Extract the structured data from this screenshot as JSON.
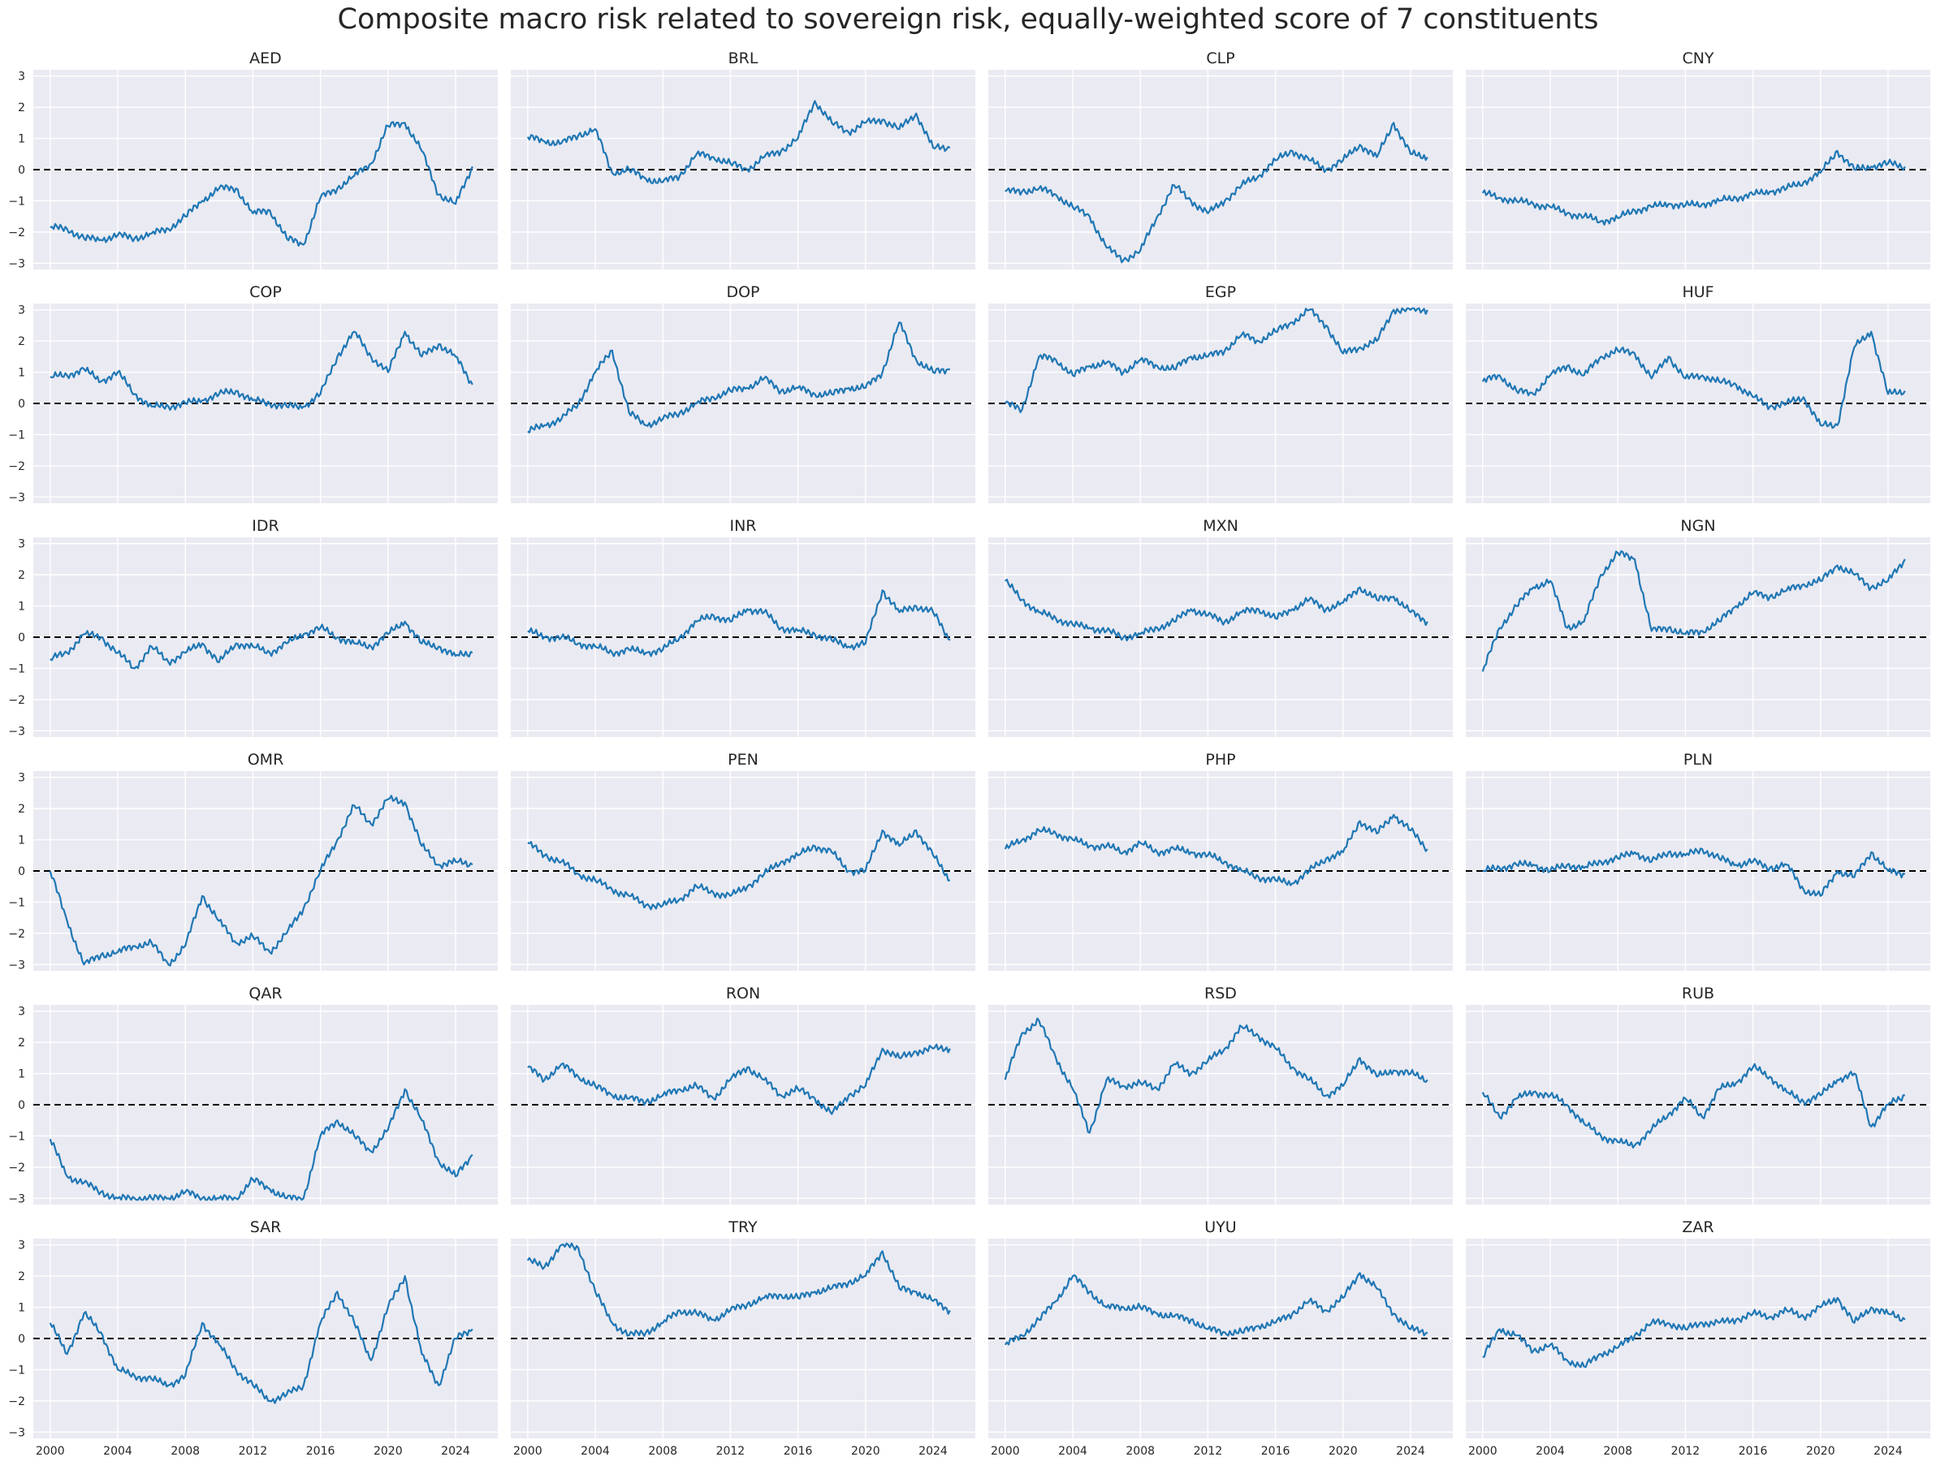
{
  "title": "Composite macro risk related to sovereign risk, equally-weighted score of 7 constituents",
  "colors": {
    "line": "#1f77b4",
    "panel_bg": "#eaeaf2",
    "grid": "#ffffff",
    "zero_line": "#000000"
  },
  "chart_data": {
    "type": "line",
    "layout": "6x4 small multiples, shared axes",
    "xlabel": "",
    "ylabel": "",
    "xlim": [
      1999.0,
      2026.5
    ],
    "ylim": [
      -3.2,
      3.2
    ],
    "x_ticks": [
      2000,
      2004,
      2008,
      2012,
      2016,
      2020,
      2024
    ],
    "x_tick_labels": [
      "2000",
      "2004",
      "2008",
      "2012",
      "2016",
      "2020",
      "2024"
    ],
    "y_ticks": [
      -3,
      -2,
      -1,
      0,
      1,
      2,
      3
    ],
    "y_tick_labels": [
      "−3",
      "−2",
      "−1",
      "0",
      "1",
      "2",
      "3"
    ],
    "reference_line": {
      "y": 0,
      "style": "dashed"
    },
    "x": [
      2000,
      2001,
      2002,
      2003,
      2004,
      2005,
      2006,
      2007,
      2008,
      2009,
      2010,
      2011,
      2012,
      2013,
      2014,
      2015,
      2016,
      2017,
      2018,
      2019,
      2020,
      2021,
      2022,
      2023,
      2024,
      2025
    ],
    "series": [
      {
        "name": "AED",
        "values": [
          -1.85,
          -1.9,
          -2.2,
          -2.25,
          -2.1,
          -2.2,
          -2.05,
          -1.9,
          -1.5,
          -1.0,
          -0.6,
          -0.6,
          -1.4,
          -1.3,
          -2.2,
          -2.4,
          -0.9,
          -0.6,
          -0.2,
          0.2,
          1.4,
          1.5,
          0.6,
          -0.8,
          -1.1,
          0.1
        ]
      },
      {
        "name": "BRL",
        "values": [
          1.05,
          0.9,
          0.85,
          1.1,
          1.3,
          -0.1,
          0.0,
          -0.3,
          -0.4,
          -0.2,
          0.5,
          0.4,
          0.2,
          0.0,
          0.4,
          0.6,
          1.0,
          2.2,
          1.5,
          1.2,
          1.5,
          1.6,
          1.3,
          1.8,
          0.7,
          0.7
        ]
      },
      {
        "name": "CLP",
        "values": [
          -0.7,
          -0.7,
          -0.6,
          -0.8,
          -1.2,
          -1.5,
          -2.5,
          -2.9,
          -2.6,
          -1.5,
          -0.5,
          -1.0,
          -1.4,
          -1.0,
          -0.5,
          -0.2,
          0.3,
          0.6,
          0.3,
          0.0,
          0.3,
          0.8,
          0.4,
          1.5,
          0.5,
          0.4
        ]
      },
      {
        "name": "CNY",
        "values": [
          -0.75,
          -0.9,
          -1.0,
          -1.1,
          -1.2,
          -1.4,
          -1.5,
          -1.65,
          -1.55,
          -1.3,
          -1.2,
          -1.1,
          -1.15,
          -1.1,
          -1.0,
          -0.9,
          -0.8,
          -0.7,
          -0.6,
          -0.4,
          -0.1,
          0.6,
          0.0,
          0.1,
          0.2,
          0.1
        ]
      },
      {
        "name": "COP",
        "values": [
          0.85,
          0.9,
          1.1,
          0.7,
          1.0,
          0.3,
          -0.1,
          -0.1,
          0.0,
          0.1,
          0.3,
          0.4,
          0.1,
          0.0,
          -0.1,
          -0.1,
          0.3,
          1.5,
          2.3,
          1.5,
          1.0,
          2.3,
          1.5,
          1.9,
          1.5,
          0.6
        ]
      },
      {
        "name": "DOP",
        "values": [
          -0.9,
          -0.7,
          -0.5,
          0.0,
          1.0,
          1.7,
          -0.3,
          -0.7,
          -0.5,
          -0.3,
          0.0,
          0.2,
          0.4,
          0.5,
          0.8,
          0.4,
          0.5,
          0.3,
          0.3,
          0.5,
          0.5,
          1.0,
          2.6,
          1.4,
          1.0,
          1.1
        ]
      },
      {
        "name": "EGP",
        "values": [
          0.0,
          -0.2,
          1.5,
          1.4,
          0.9,
          1.2,
          1.3,
          1.0,
          1.4,
          1.2,
          1.1,
          1.5,
          1.5,
          1.7,
          2.2,
          2.0,
          2.3,
          2.6,
          3.0,
          2.5,
          1.6,
          1.8,
          2.0,
          3.0,
          3.0,
          3.0
        ]
      },
      {
        "name": "HUF",
        "values": [
          0.7,
          0.9,
          0.4,
          0.3,
          0.9,
          1.2,
          0.9,
          1.5,
          1.7,
          1.6,
          0.8,
          1.5,
          0.8,
          0.9,
          0.7,
          0.6,
          0.2,
          -0.1,
          0.0,
          0.2,
          -0.7,
          -0.7,
          1.8,
          2.3,
          0.3,
          0.4
        ]
      },
      {
        "name": "IDR",
        "values": [
          -0.7,
          -0.5,
          0.1,
          0.0,
          -0.5,
          -1.0,
          -0.3,
          -0.8,
          -0.5,
          -0.2,
          -0.8,
          -0.2,
          -0.3,
          -0.5,
          -0.2,
          0.1,
          0.3,
          0.0,
          -0.2,
          -0.3,
          0.1,
          0.5,
          -0.2,
          -0.3,
          -0.6,
          -0.5
        ]
      },
      {
        "name": "INR",
        "values": [
          0.2,
          0.0,
          0.0,
          -0.2,
          -0.3,
          -0.5,
          -0.4,
          -0.5,
          -0.4,
          0.0,
          0.5,
          0.7,
          0.5,
          0.9,
          0.8,
          0.3,
          0.2,
          0.1,
          -0.1,
          -0.3,
          -0.2,
          1.5,
          0.8,
          1.0,
          0.8,
          -0.1
        ]
      },
      {
        "name": "MXN",
        "values": [
          1.8,
          1.2,
          0.8,
          0.6,
          0.4,
          0.3,
          0.2,
          0.0,
          0.1,
          0.3,
          0.5,
          0.9,
          0.7,
          0.5,
          0.8,
          0.9,
          0.6,
          0.9,
          1.2,
          0.9,
          1.1,
          1.6,
          1.2,
          1.3,
          0.8,
          0.5
        ]
      },
      {
        "name": "NGN",
        "values": [
          -1.1,
          0.3,
          1.0,
          1.6,
          1.8,
          0.3,
          0.5,
          2.0,
          2.7,
          2.5,
          0.2,
          0.3,
          0.1,
          0.2,
          0.5,
          1.0,
          1.4,
          1.3,
          1.5,
          1.7,
          1.8,
          2.3,
          2.0,
          1.6,
          1.8,
          2.5
        ]
      },
      {
        "name": "OMR",
        "values": [
          0.0,
          -1.6,
          -3.0,
          -2.7,
          -2.6,
          -2.4,
          -2.3,
          -3.0,
          -2.4,
          -0.8,
          -1.6,
          -2.3,
          -2.1,
          -2.6,
          -2.0,
          -1.2,
          0.0,
          1.0,
          2.1,
          1.5,
          2.3,
          2.2,
          0.8,
          0.2,
          0.3,
          0.2
        ]
      },
      {
        "name": "PEN",
        "values": [
          0.9,
          0.5,
          0.3,
          -0.1,
          -0.3,
          -0.6,
          -0.8,
          -1.1,
          -1.1,
          -0.9,
          -0.5,
          -0.7,
          -0.8,
          -0.5,
          -0.1,
          0.3,
          0.5,
          0.8,
          0.6,
          0.0,
          0.0,
          1.3,
          0.8,
          1.3,
          0.5,
          -0.3
        ]
      },
      {
        "name": "PHP",
        "values": [
          0.7,
          1.0,
          1.3,
          1.2,
          1.0,
          0.8,
          0.8,
          0.6,
          0.9,
          0.6,
          0.7,
          0.6,
          0.5,
          0.3,
          0.0,
          -0.2,
          -0.3,
          -0.4,
          0.0,
          0.4,
          0.6,
          1.6,
          1.2,
          1.8,
          1.3,
          0.7
        ]
      },
      {
        "name": "PLN",
        "values": [
          0.0,
          0.1,
          0.2,
          0.2,
          0.0,
          0.2,
          0.1,
          0.3,
          0.4,
          0.6,
          0.3,
          0.6,
          0.5,
          0.7,
          0.4,
          0.2,
          0.3,
          0.1,
          0.2,
          -0.6,
          -0.8,
          0.0,
          -0.2,
          0.6,
          0.0,
          -0.1
        ]
      },
      {
        "name": "QAR",
        "values": [
          -1.1,
          -2.3,
          -2.5,
          -2.8,
          -3.0,
          -3.0,
          -3.0,
          -3.0,
          -2.8,
          -3.0,
          -3.0,
          -3.0,
          -2.4,
          -2.7,
          -3.0,
          -3.0,
          -1.0,
          -0.5,
          -1.0,
          -1.5,
          -0.8,
          0.5,
          -0.5,
          -1.8,
          -2.3,
          -1.6
        ]
      },
      {
        "name": "RON",
        "values": [
          1.2,
          0.8,
          1.3,
          0.9,
          0.6,
          0.3,
          0.2,
          0.1,
          0.3,
          0.5,
          0.6,
          0.2,
          0.8,
          1.2,
          0.8,
          0.3,
          0.5,
          0.2,
          -0.3,
          0.3,
          0.6,
          1.8,
          1.5,
          1.7,
          1.8,
          1.8
        ]
      },
      {
        "name": "RSD",
        "values": [
          0.8,
          2.3,
          2.7,
          1.5,
          0.5,
          -0.9,
          0.8,
          0.6,
          0.7,
          0.5,
          1.3,
          1.0,
          1.4,
          1.8,
          2.5,
          2.2,
          1.8,
          1.2,
          0.8,
          0.3,
          0.6,
          1.5,
          0.9,
          1.1,
          1.0,
          0.8
        ]
      },
      {
        "name": "RUB",
        "values": [
          0.4,
          -0.4,
          0.2,
          0.4,
          0.3,
          0.0,
          -0.6,
          -1.0,
          -1.2,
          -1.3,
          -0.8,
          -0.3,
          0.2,
          -0.4,
          0.5,
          0.7,
          1.2,
          0.9,
          0.4,
          0.1,
          0.3,
          0.8,
          1.0,
          -0.7,
          0.0,
          0.3
        ]
      },
      {
        "name": "SAR",
        "values": [
          0.5,
          -0.5,
          0.8,
          0.2,
          -1.0,
          -1.2,
          -1.3,
          -1.5,
          -1.2,
          0.5,
          -0.2,
          -1.0,
          -1.5,
          -2.0,
          -1.8,
          -1.5,
          0.5,
          1.5,
          0.5,
          -0.7,
          1.0,
          2.0,
          -0.5,
          -1.5,
          0.0,
          0.3
        ]
      },
      {
        "name": "TRY",
        "values": [
          2.5,
          2.3,
          3.0,
          2.9,
          1.5,
          0.5,
          0.1,
          0.2,
          0.5,
          0.9,
          0.8,
          0.6,
          0.9,
          1.1,
          1.3,
          1.4,
          1.3,
          1.5,
          1.6,
          1.8,
          2.0,
          2.8,
          1.6,
          1.5,
          1.2,
          0.9
        ]
      },
      {
        "name": "UYU",
        "values": [
          -0.2,
          0.1,
          0.6,
          1.2,
          2.0,
          1.5,
          1.0,
          1.0,
          1.0,
          0.8,
          0.7,
          0.6,
          0.3,
          0.2,
          0.2,
          0.4,
          0.5,
          0.8,
          1.2,
          0.9,
          1.3,
          2.1,
          1.6,
          0.8,
          0.3,
          0.2
        ]
      },
      {
        "name": "ZAR",
        "values": [
          -0.6,
          0.3,
          0.1,
          -0.4,
          -0.2,
          -0.7,
          -0.9,
          -0.5,
          -0.3,
          0.1,
          0.5,
          0.5,
          0.3,
          0.5,
          0.5,
          0.6,
          0.8,
          0.7,
          0.9,
          0.7,
          1.0,
          1.3,
          0.5,
          1.0,
          0.8,
          0.6
        ]
      }
    ]
  }
}
